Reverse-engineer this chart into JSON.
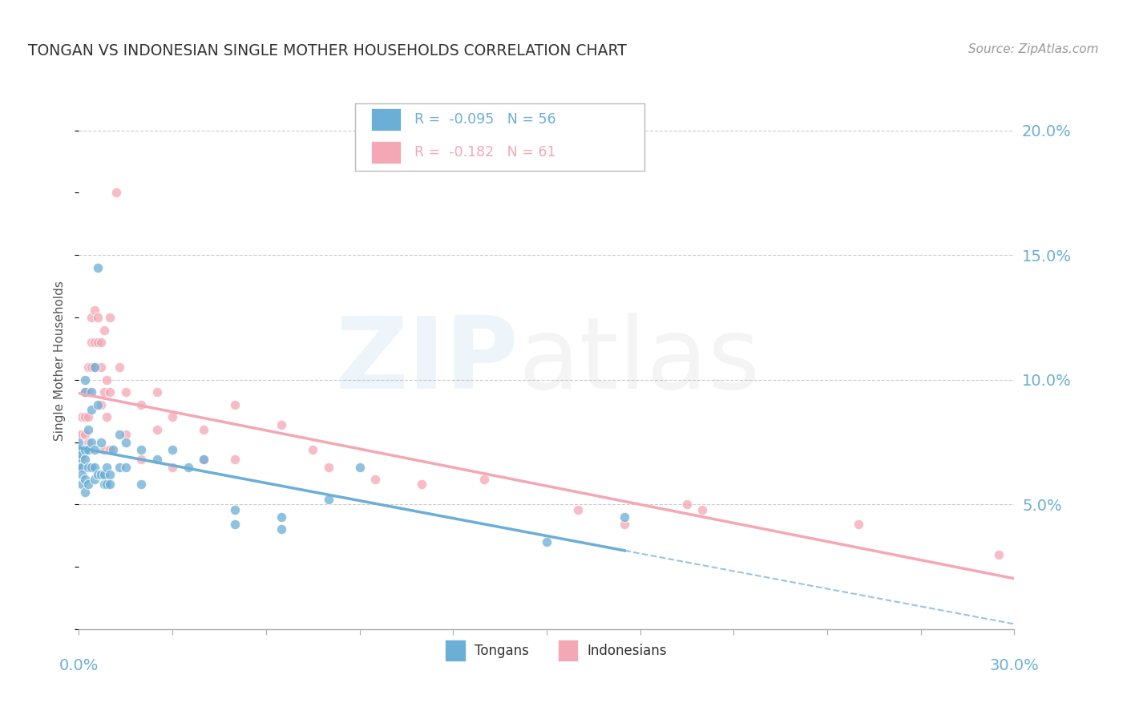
{
  "title": "TONGAN VS INDONESIAN SINGLE MOTHER HOUSEHOLDS CORRELATION CHART",
  "source": "Source: ZipAtlas.com",
  "ylabel": "Single Mother Households",
  "xmin": 0.0,
  "xmax": 0.3,
  "ymin": 0.0,
  "ymax": 0.215,
  "yticks": [
    0.05,
    0.1,
    0.15,
    0.2
  ],
  "ytick_labels": [
    "5.0%",
    "10.0%",
    "15.0%",
    "20.0%"
  ],
  "tongan_color": "#6baed6",
  "indonesian_color": "#f4a7b5",
  "tongan_R": -0.095,
  "tongan_N": 56,
  "indonesian_R": -0.182,
  "indonesian_N": 61,
  "tongan_points": [
    [
      0.0,
      0.072
    ],
    [
      0.0,
      0.068
    ],
    [
      0.0,
      0.075
    ],
    [
      0.0,
      0.065
    ],
    [
      0.001,
      0.065
    ],
    [
      0.001,
      0.062
    ],
    [
      0.001,
      0.07
    ],
    [
      0.001,
      0.058
    ],
    [
      0.002,
      0.072
    ],
    [
      0.002,
      0.068
    ],
    [
      0.002,
      0.1
    ],
    [
      0.002,
      0.095
    ],
    [
      0.002,
      0.06
    ],
    [
      0.002,
      0.055
    ],
    [
      0.003,
      0.08
    ],
    [
      0.003,
      0.072
    ],
    [
      0.003,
      0.065
    ],
    [
      0.003,
      0.058
    ],
    [
      0.004,
      0.095
    ],
    [
      0.004,
      0.088
    ],
    [
      0.004,
      0.075
    ],
    [
      0.004,
      0.065
    ],
    [
      0.005,
      0.105
    ],
    [
      0.005,
      0.072
    ],
    [
      0.005,
      0.065
    ],
    [
      0.005,
      0.06
    ],
    [
      0.006,
      0.145
    ],
    [
      0.006,
      0.09
    ],
    [
      0.006,
      0.062
    ],
    [
      0.007,
      0.075
    ],
    [
      0.007,
      0.062
    ],
    [
      0.008,
      0.062
    ],
    [
      0.008,
      0.058
    ],
    [
      0.009,
      0.065
    ],
    [
      0.009,
      0.058
    ],
    [
      0.01,
      0.062
    ],
    [
      0.01,
      0.058
    ],
    [
      0.011,
      0.072
    ],
    [
      0.013,
      0.078
    ],
    [
      0.013,
      0.065
    ],
    [
      0.015,
      0.075
    ],
    [
      0.015,
      0.065
    ],
    [
      0.02,
      0.072
    ],
    [
      0.02,
      0.058
    ],
    [
      0.025,
      0.068
    ],
    [
      0.03,
      0.072
    ],
    [
      0.035,
      0.065
    ],
    [
      0.04,
      0.068
    ],
    [
      0.05,
      0.048
    ],
    [
      0.05,
      0.042
    ],
    [
      0.065,
      0.045
    ],
    [
      0.065,
      0.04
    ],
    [
      0.08,
      0.052
    ],
    [
      0.09,
      0.065
    ],
    [
      0.15,
      0.035
    ],
    [
      0.175,
      0.045
    ]
  ],
  "indonesian_points": [
    [
      0.0,
      0.068
    ],
    [
      0.0,
      0.072
    ],
    [
      0.0,
      0.078
    ],
    [
      0.0,
      0.065
    ],
    [
      0.001,
      0.078
    ],
    [
      0.001,
      0.068
    ],
    [
      0.001,
      0.085
    ],
    [
      0.001,
      0.072
    ],
    [
      0.002,
      0.095
    ],
    [
      0.002,
      0.085
    ],
    [
      0.002,
      0.078
    ],
    [
      0.002,
      0.072
    ],
    [
      0.003,
      0.105
    ],
    [
      0.003,
      0.095
    ],
    [
      0.003,
      0.085
    ],
    [
      0.003,
      0.075
    ],
    [
      0.004,
      0.125
    ],
    [
      0.004,
      0.115
    ],
    [
      0.004,
      0.105
    ],
    [
      0.005,
      0.128
    ],
    [
      0.005,
      0.115
    ],
    [
      0.005,
      0.105
    ],
    [
      0.006,
      0.125
    ],
    [
      0.006,
      0.115
    ],
    [
      0.007,
      0.115
    ],
    [
      0.007,
      0.105
    ],
    [
      0.007,
      0.09
    ],
    [
      0.008,
      0.12
    ],
    [
      0.008,
      0.095
    ],
    [
      0.008,
      0.072
    ],
    [
      0.009,
      0.1
    ],
    [
      0.009,
      0.085
    ],
    [
      0.01,
      0.125
    ],
    [
      0.01,
      0.095
    ],
    [
      0.01,
      0.072
    ],
    [
      0.012,
      0.175
    ],
    [
      0.013,
      0.105
    ],
    [
      0.015,
      0.095
    ],
    [
      0.015,
      0.078
    ],
    [
      0.02,
      0.09
    ],
    [
      0.02,
      0.068
    ],
    [
      0.025,
      0.095
    ],
    [
      0.025,
      0.08
    ],
    [
      0.03,
      0.085
    ],
    [
      0.03,
      0.065
    ],
    [
      0.04,
      0.08
    ],
    [
      0.04,
      0.068
    ],
    [
      0.05,
      0.09
    ],
    [
      0.05,
      0.068
    ],
    [
      0.065,
      0.082
    ],
    [
      0.075,
      0.072
    ],
    [
      0.08,
      0.065
    ],
    [
      0.095,
      0.06
    ],
    [
      0.11,
      0.058
    ],
    [
      0.13,
      0.06
    ],
    [
      0.16,
      0.048
    ],
    [
      0.175,
      0.042
    ],
    [
      0.195,
      0.05
    ],
    [
      0.2,
      0.048
    ],
    [
      0.25,
      0.042
    ],
    [
      0.295,
      0.03
    ]
  ],
  "background_color": "#ffffff",
  "grid_color": "#cccccc",
  "tick_color": "#6baed6"
}
